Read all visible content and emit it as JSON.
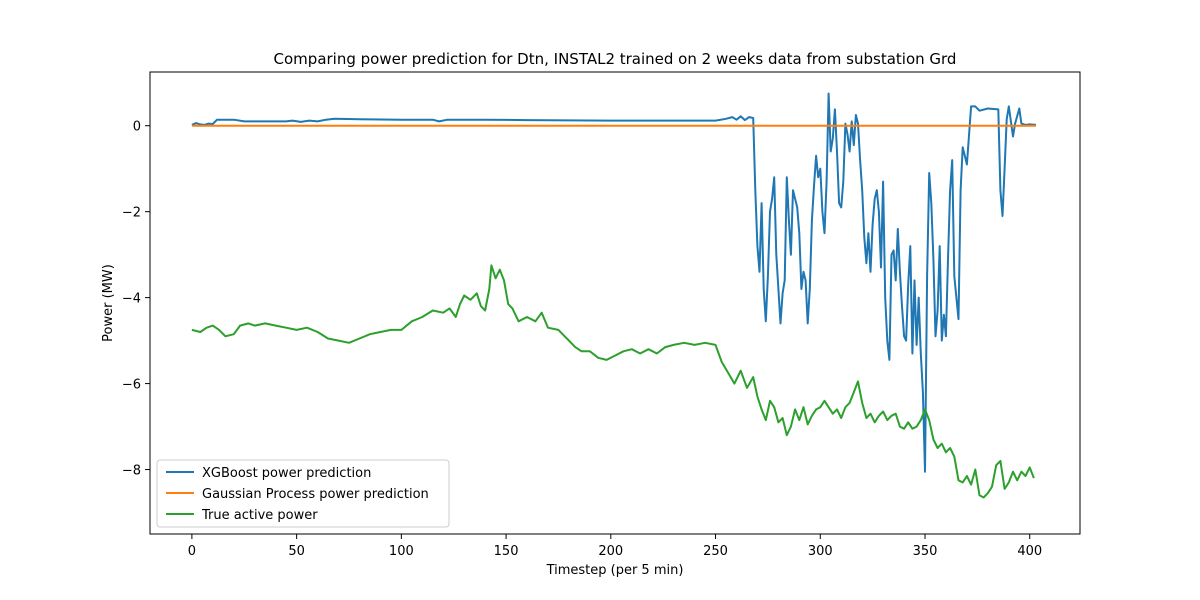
{
  "chart_data": {
    "type": "line",
    "title": "Comparing power prediction for Dtn, INSTAL2 trained on 2 weeks data from substation Grd",
    "xlabel": "Timestep (per 5 min)",
    "ylabel": "Power (MW)",
    "xlim": [
      -20,
      424
    ],
    "ylim": [
      -9.5,
      1.25
    ],
    "xticks": [
      0,
      50,
      100,
      150,
      200,
      250,
      300,
      350,
      400
    ],
    "yticks": [
      0,
      -2,
      -4,
      -6,
      -8
    ],
    "xtick_labels": [
      "0",
      "50",
      "100",
      "150",
      "200",
      "250",
      "300",
      "350",
      "400"
    ],
    "ytick_labels": [
      "0",
      "−2",
      "−4",
      "−6",
      "−8"
    ],
    "legend_position": "lower-left",
    "series": [
      {
        "name": "XGBoost power prediction",
        "color": "#1f77b4",
        "points": [
          [
            0,
            0.02
          ],
          [
            2,
            0.06
          ],
          [
            4,
            0.03
          ],
          [
            6,
            0.02
          ],
          [
            8,
            0.05
          ],
          [
            10,
            0.04
          ],
          [
            12,
            0.14
          ],
          [
            20,
            0.14
          ],
          [
            25,
            0.1
          ],
          [
            45,
            0.1
          ],
          [
            48,
            0.12
          ],
          [
            52,
            0.09
          ],
          [
            56,
            0.12
          ],
          [
            60,
            0.1
          ],
          [
            64,
            0.14
          ],
          [
            68,
            0.16
          ],
          [
            80,
            0.15
          ],
          [
            100,
            0.14
          ],
          [
            115,
            0.14
          ],
          [
            118,
            0.1
          ],
          [
            122,
            0.14
          ],
          [
            140,
            0.14
          ],
          [
            160,
            0.13
          ],
          [
            200,
            0.12
          ],
          [
            230,
            0.12
          ],
          [
            250,
            0.12
          ],
          [
            255,
            0.16
          ],
          [
            258,
            0.2
          ],
          [
            260,
            0.14
          ],
          [
            262,
            0.22
          ],
          [
            264,
            0.13
          ],
          [
            266,
            0.2
          ],
          [
            268,
            0.18
          ],
          [
            269,
            -1.5
          ],
          [
            270,
            -2.8
          ],
          [
            271,
            -3.4
          ],
          [
            272,
            -1.8
          ],
          [
            273,
            -3.8
          ],
          [
            274,
            -4.55
          ],
          [
            275,
            -3.5
          ],
          [
            276,
            -2.0
          ],
          [
            277,
            -1.7
          ],
          [
            278,
            -1.2
          ],
          [
            279,
            -3.0
          ],
          [
            280,
            -3.8
          ],
          [
            281,
            -4.6
          ],
          [
            282,
            -3.9
          ],
          [
            283,
            -3.6
          ],
          [
            284,
            -1.2
          ],
          [
            285,
            -2.2
          ],
          [
            286,
            -3.0
          ],
          [
            287,
            -1.5
          ],
          [
            288,
            -1.7
          ],
          [
            289,
            -1.9
          ],
          [
            290,
            -2.5
          ],
          [
            291,
            -3.8
          ],
          [
            292,
            -3.4
          ],
          [
            293,
            -3.6
          ],
          [
            294,
            -4.6
          ],
          [
            295,
            -3.8
          ],
          [
            296,
            -2.2
          ],
          [
            297,
            -1.4
          ],
          [
            298,
            -0.7
          ],
          [
            299,
            -1.2
          ],
          [
            300,
            -1.0
          ],
          [
            301,
            -2.0
          ],
          [
            302,
            -2.5
          ],
          [
            303,
            -1.3
          ],
          [
            304,
            0.75
          ],
          [
            305,
            -0.6
          ],
          [
            306,
            -0.3
          ],
          [
            307,
            0.38
          ],
          [
            308,
            -0.6
          ],
          [
            309,
            -1.8
          ],
          [
            310,
            -1.9
          ],
          [
            311,
            -1.3
          ],
          [
            312,
            0.05
          ],
          [
            313,
            -0.2
          ],
          [
            314,
            -0.6
          ],
          [
            315,
            0.1
          ],
          [
            316,
            -0.45
          ],
          [
            317,
            0.25
          ],
          [
            318,
            0.05
          ],
          [
            319,
            -0.8
          ],
          [
            320,
            -1.5
          ],
          [
            321,
            -2.6
          ],
          [
            322,
            -3.2
          ],
          [
            323,
            -2.5
          ],
          [
            324,
            -3.4
          ],
          [
            325,
            -2.3
          ],
          [
            326,
            -1.7
          ],
          [
            327,
            -1.5
          ],
          [
            328,
            -2.0
          ],
          [
            329,
            -3.3
          ],
          [
            330,
            -1.3
          ],
          [
            331,
            -4.0
          ],
          [
            332,
            -5.0
          ],
          [
            333,
            -5.45
          ],
          [
            334,
            -3.0
          ],
          [
            335,
            -2.9
          ],
          [
            336,
            -3.6
          ],
          [
            337,
            -2.4
          ],
          [
            338,
            -3.4
          ],
          [
            339,
            -4.2
          ],
          [
            340,
            -4.9
          ],
          [
            341,
            -5.0
          ],
          [
            342,
            -3.7
          ],
          [
            343,
            -2.8
          ],
          [
            344,
            -5.3
          ],
          [
            345,
            -3.6
          ],
          [
            346,
            -5.1
          ],
          [
            347,
            -4.0
          ],
          [
            348,
            -5.3
          ],
          [
            349,
            -6.2
          ],
          [
            350,
            -8.05
          ],
          [
            351,
            -3.5
          ],
          [
            352,
            -1.1
          ],
          [
            353,
            -1.8
          ],
          [
            354,
            -3.1
          ],
          [
            355,
            -4.9
          ],
          [
            356,
            -4.3
          ],
          [
            357,
            -2.8
          ],
          [
            358,
            -5.0
          ],
          [
            359,
            -4.4
          ],
          [
            360,
            -4.9
          ],
          [
            361,
            -3.1
          ],
          [
            362,
            -1.5
          ],
          [
            363,
            -0.8
          ],
          [
            364,
            -3.5
          ],
          [
            365,
            -4.0
          ],
          [
            366,
            -4.5
          ],
          [
            367,
            -1.5
          ],
          [
            368,
            -0.5
          ],
          [
            369,
            -0.7
          ],
          [
            370,
            -0.9
          ],
          [
            372,
            0.45
          ],
          [
            374,
            0.45
          ],
          [
            376,
            0.35
          ],
          [
            380,
            0.4
          ],
          [
            385,
            0.38
          ],
          [
            386,
            -1.5
          ],
          [
            387,
            -2.1
          ],
          [
            388,
            -1.0
          ],
          [
            389,
            0.15
          ],
          [
            390,
            0.45
          ],
          [
            391,
            0.1
          ],
          [
            392,
            -0.25
          ],
          [
            393,
            0.05
          ],
          [
            395,
            0.4
          ],
          [
            396,
            0.05
          ],
          [
            398,
            0.02
          ],
          [
            400,
            0.03
          ],
          [
            403,
            0.02
          ]
        ]
      },
      {
        "name": "Gaussian Process power prediction",
        "color": "#ff7f0e",
        "points": [
          [
            0,
            0.0
          ],
          [
            100,
            0.0
          ],
          [
            200,
            0.0
          ],
          [
            300,
            0.0
          ],
          [
            403,
            0.0
          ]
        ]
      },
      {
        "name": "True active power",
        "color": "#2ca02c",
        "points": [
          [
            0,
            -4.75
          ],
          [
            4,
            -4.8
          ],
          [
            7,
            -4.7
          ],
          [
            10,
            -4.65
          ],
          [
            13,
            -4.75
          ],
          [
            16,
            -4.9
          ],
          [
            20,
            -4.85
          ],
          [
            23,
            -4.65
          ],
          [
            27,
            -4.6
          ],
          [
            30,
            -4.65
          ],
          [
            35,
            -4.6
          ],
          [
            40,
            -4.65
          ],
          [
            45,
            -4.7
          ],
          [
            50,
            -4.75
          ],
          [
            55,
            -4.7
          ],
          [
            60,
            -4.8
          ],
          [
            65,
            -4.95
          ],
          [
            70,
            -5.0
          ],
          [
            75,
            -5.05
          ],
          [
            80,
            -4.95
          ],
          [
            85,
            -4.85
          ],
          [
            90,
            -4.8
          ],
          [
            95,
            -4.75
          ],
          [
            100,
            -4.75
          ],
          [
            105,
            -4.55
          ],
          [
            110,
            -4.45
          ],
          [
            115,
            -4.3
          ],
          [
            120,
            -4.35
          ],
          [
            123,
            -4.25
          ],
          [
            126,
            -4.45
          ],
          [
            128,
            -4.15
          ],
          [
            130,
            -3.95
          ],
          [
            133,
            -4.05
          ],
          [
            136,
            -3.9
          ],
          [
            138,
            -4.2
          ],
          [
            140,
            -4.3
          ],
          [
            142,
            -3.8
          ],
          [
            143,
            -3.25
          ],
          [
            145,
            -3.55
          ],
          [
            147,
            -3.35
          ],
          [
            149,
            -3.6
          ],
          [
            151,
            -4.15
          ],
          [
            153,
            -4.25
          ],
          [
            156,
            -4.55
          ],
          [
            160,
            -4.45
          ],
          [
            164,
            -4.55
          ],
          [
            167,
            -4.35
          ],
          [
            170,
            -4.7
          ],
          [
            175,
            -4.75
          ],
          [
            180,
            -5.0
          ],
          [
            183,
            -5.15
          ],
          [
            186,
            -5.25
          ],
          [
            190,
            -5.25
          ],
          [
            194,
            -5.4
          ],
          [
            198,
            -5.45
          ],
          [
            202,
            -5.35
          ],
          [
            206,
            -5.25
          ],
          [
            210,
            -5.2
          ],
          [
            214,
            -5.3
          ],
          [
            218,
            -5.2
          ],
          [
            222,
            -5.3
          ],
          [
            226,
            -5.15
          ],
          [
            230,
            -5.1
          ],
          [
            235,
            -5.05
          ],
          [
            240,
            -5.1
          ],
          [
            245,
            -5.05
          ],
          [
            250,
            -5.1
          ],
          [
            253,
            -5.5
          ],
          [
            256,
            -5.75
          ],
          [
            259,
            -6.0
          ],
          [
            262,
            -5.7
          ],
          [
            265,
            -6.1
          ],
          [
            268,
            -5.85
          ],
          [
            270,
            -6.3
          ],
          [
            272,
            -6.6
          ],
          [
            274,
            -6.85
          ],
          [
            276,
            -6.4
          ],
          [
            278,
            -6.55
          ],
          [
            280,
            -6.9
          ],
          [
            282,
            -6.8
          ],
          [
            284,
            -7.2
          ],
          [
            286,
            -7.0
          ],
          [
            288,
            -6.6
          ],
          [
            290,
            -6.85
          ],
          [
            292,
            -6.55
          ],
          [
            294,
            -6.95
          ],
          [
            296,
            -6.75
          ],
          [
            298,
            -6.6
          ],
          [
            300,
            -6.55
          ],
          [
            302,
            -6.4
          ],
          [
            304,
            -6.55
          ],
          [
            306,
            -6.7
          ],
          [
            308,
            -6.6
          ],
          [
            310,
            -6.8
          ],
          [
            312,
            -6.55
          ],
          [
            314,
            -6.45
          ],
          [
            316,
            -6.2
          ],
          [
            318,
            -5.95
          ],
          [
            320,
            -6.45
          ],
          [
            322,
            -6.8
          ],
          [
            324,
            -6.7
          ],
          [
            326,
            -6.9
          ],
          [
            328,
            -6.75
          ],
          [
            330,
            -6.65
          ],
          [
            332,
            -6.85
          ],
          [
            334,
            -6.75
          ],
          [
            336,
            -6.7
          ],
          [
            338,
            -7.0
          ],
          [
            340,
            -7.05
          ],
          [
            342,
            -6.9
          ],
          [
            344,
            -7.05
          ],
          [
            346,
            -7.0
          ],
          [
            348,
            -6.85
          ],
          [
            350,
            -6.6
          ],
          [
            352,
            -6.85
          ],
          [
            354,
            -7.3
          ],
          [
            356,
            -7.5
          ],
          [
            358,
            -7.4
          ],
          [
            360,
            -7.6
          ],
          [
            362,
            -7.5
          ],
          [
            364,
            -7.7
          ],
          [
            366,
            -8.25
          ],
          [
            368,
            -8.3
          ],
          [
            370,
            -8.15
          ],
          [
            372,
            -8.35
          ],
          [
            374,
            -8.0
          ],
          [
            376,
            -8.6
          ],
          [
            378,
            -8.65
          ],
          [
            380,
            -8.55
          ],
          [
            382,
            -8.4
          ],
          [
            384,
            -7.9
          ],
          [
            386,
            -7.8
          ],
          [
            388,
            -8.45
          ],
          [
            390,
            -8.3
          ],
          [
            392,
            -8.05
          ],
          [
            394,
            -8.25
          ],
          [
            396,
            -8.05
          ],
          [
            398,
            -8.15
          ],
          [
            400,
            -7.95
          ],
          [
            402,
            -8.2
          ]
        ]
      }
    ]
  }
}
